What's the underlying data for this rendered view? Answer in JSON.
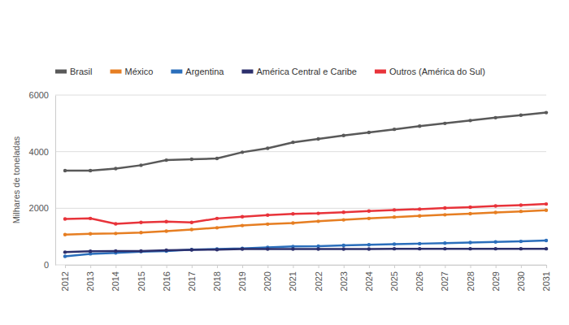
{
  "chart_data": {
    "type": "line",
    "y_label": "Milhares de toneladas",
    "categories": [
      "2012",
      "2013",
      "2014",
      "2015",
      "2016",
      "2017",
      "2018",
      "2019",
      "2020",
      "2021",
      "2022",
      "2023",
      "2024",
      "2025",
      "2026",
      "2027",
      "2028",
      "2029",
      "2030",
      "2031"
    ],
    "series": [
      {
        "name": "Brasil",
        "color": "#595959",
        "values": [
          3330,
          3330,
          3400,
          3520,
          3700,
          3730,
          3760,
          3980,
          4120,
          4330,
          4450,
          4570,
          4680,
          4790,
          4900,
          5000,
          5100,
          5200,
          5290,
          5380
        ]
      },
      {
        "name": "México",
        "color": "#e67e22",
        "values": [
          1070,
          1100,
          1110,
          1140,
          1190,
          1250,
          1310,
          1390,
          1440,
          1480,
          1540,
          1590,
          1640,
          1690,
          1730,
          1770,
          1810,
          1850,
          1890,
          1930
        ]
      },
      {
        "name": "Argentina",
        "color": "#2a6ebb",
        "values": [
          300,
          390,
          420,
          470,
          490,
          540,
          560,
          580,
          620,
          650,
          660,
          690,
          710,
          730,
          750,
          770,
          790,
          810,
          830,
          860
        ]
      },
      {
        "name": "América Central e Caribe",
        "color": "#2c2f6c",
        "values": [
          450,
          480,
          490,
          490,
          520,
          530,
          540,
          560,
          560,
          560,
          560,
          560,
          560,
          570,
          570,
          570,
          570,
          570,
          570,
          570
        ]
      },
      {
        "name": "Outros (América do Sul)",
        "color": "#e8333a",
        "values": [
          1620,
          1640,
          1450,
          1500,
          1530,
          1500,
          1640,
          1700,
          1760,
          1800,
          1820,
          1860,
          1900,
          1940,
          1970,
          2010,
          2040,
          2080,
          2110,
          2150
        ]
      }
    ],
    "ylim": [
      0,
      6000
    ],
    "yticks": [
      0,
      2000,
      4000,
      6000
    ],
    "grid": true,
    "legend": "top",
    "marker": "circle"
  }
}
